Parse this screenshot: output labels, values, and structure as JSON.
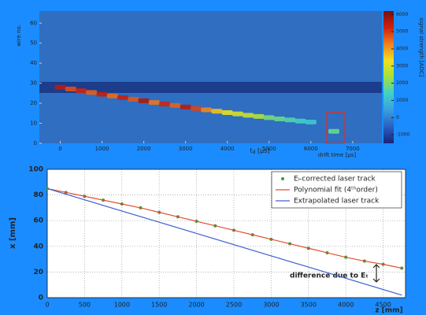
{
  "chart_data": [
    {
      "type": "heatmap",
      "ylabel": "wire no.",
      "xlabel": [
        "t",
        "d",
        " [µs]"
      ],
      "xlabel2": "drift time [µs]",
      "zlabel": "signal strength [ADC]",
      "x": [
        0,
        250,
        500,
        750,
        1000,
        1250,
        1500,
        1750,
        2000,
        2250,
        2500,
        2750,
        3000,
        3250,
        3500,
        3750,
        4000,
        4250,
        4500,
        4750,
        5000,
        5250,
        5500,
        5750,
        6000,
        6550
      ],
      "y": [
        28,
        27.1,
        26.2,
        25.4,
        24.5,
        23.6,
        22.8,
        22.0,
        21.2,
        20.4,
        19.6,
        18.9,
        18.1,
        17.4,
        16.7,
        16.0,
        15.3,
        14.7,
        14.0,
        13.4,
        12.8,
        12.2,
        11.7,
        11.1,
        10.6,
        6
      ],
      "values": [
        5500,
        4800,
        5200,
        4600,
        5400,
        4500,
        5300,
        4700,
        5600,
        4400,
        5200,
        4600,
        5500,
        4900,
        4200,
        3600,
        3200,
        3000,
        2800,
        2600,
        2000,
        1800,
        1600,
        1400,
        1200,
        1800
      ],
      "xlim": [
        -500,
        7700
      ],
      "ylim": [
        0,
        66
      ],
      "zlim": [
        -1500,
        6200
      ],
      "xticks": [
        0,
        1000,
        2000,
        3000,
        4000,
        5000,
        6000,
        7000
      ],
      "yticks": [
        0,
        10,
        20,
        30,
        40,
        50,
        60
      ],
      "zticks": [
        -1000,
        0,
        1000,
        2000,
        3000,
        4000,
        5000,
        6000
      ],
      "colormap": [
        "#1a237a",
        "#2860c0",
        "#3a9ee0",
        "#40d0c8",
        "#a0e040",
        "#f0e020",
        "#f08020",
        "#d02010",
        "#7a1010"
      ]
    },
    {
      "type": "line",
      "ylabel": "x [mm]",
      "xlabel": "z [mm]",
      "annotation": "difference due to Eₜ",
      "xlim": [
        0,
        4800
      ],
      "ylim": [
        0,
        100
      ],
      "xticks": [
        0,
        500,
        1000,
        1500,
        2000,
        2500,
        3000,
        3500,
        4000,
        4500
      ],
      "yticks": [
        0,
        20,
        40,
        60,
        80,
        100
      ],
      "grid": true,
      "legend": "upper right",
      "series": [
        {
          "name": "Eₗ-corrected laser track",
          "color": "#3a9a3a",
          "marker": "dot",
          "x": [
            0,
            250,
            500,
            750,
            1000,
            1250,
            1500,
            1750,
            2000,
            2250,
            2500,
            2750,
            3000,
            3250,
            3500,
            3750,
            4000,
            4250,
            4500,
            4750
          ],
          "values": [
            85,
            82,
            79,
            76,
            73,
            70,
            66.5,
            63,
            59.5,
            56,
            52.5,
            49,
            45.5,
            42,
            38.5,
            35,
            31.5,
            28.5,
            26,
            23
          ]
        },
        {
          "name": "Polynomial fit (4ᵗʰorder)",
          "color": "#e05030",
          "marker": "line",
          "x": [
            0,
            250,
            500,
            750,
            1000,
            1250,
            1500,
            1750,
            2000,
            2250,
            2500,
            2750,
            3000,
            3250,
            3500,
            3750,
            4000,
            4250,
            4500,
            4750
          ],
          "values": [
            85,
            82,
            79,
            76,
            73,
            70,
            66.5,
            63,
            59.5,
            56,
            52.5,
            49,
            45.5,
            42,
            38.5,
            35,
            31.5,
            28.5,
            26,
            23
          ]
        },
        {
          "name": "Extrapolated laser track",
          "color": "#4060d0",
          "marker": "line",
          "x": [
            0,
            4750
          ],
          "values": [
            85,
            2
          ]
        }
      ]
    }
  ]
}
